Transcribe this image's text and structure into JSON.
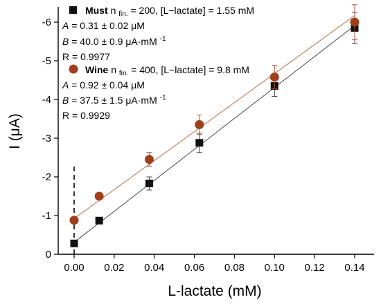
{
  "chart_data": {
    "type": "scatter",
    "xlabel": "L-lactate (mM)",
    "ylabel": "I (μA)",
    "xlim": [
      -0.005,
      0.145
    ],
    "ylim": [
      0,
      -6.5
    ],
    "x_ticks": [
      "0.00",
      "0.02",
      "0.04",
      "0.06",
      "0.08",
      "0.10",
      "0.12",
      "0.14"
    ],
    "y_ticks": [
      "0",
      "-1",
      "-2",
      "-3",
      "-4",
      "-5",
      "-6"
    ],
    "y_tick_values": [
      0,
      -1,
      -2,
      -3,
      -4,
      -5,
      -6
    ],
    "x_tick_values": [
      0,
      0.02,
      0.04,
      0.06,
      0.08,
      0.1,
      0.12,
      0.14
    ],
    "grid": false,
    "reference_line": {
      "x": 0,
      "y_from": 0,
      "y_to": -2.3,
      "style": "dashed"
    },
    "series": [
      {
        "name": "Must",
        "color": "#111111",
        "marker": "square",
        "x": [
          0,
          0.0125,
          0.0375,
          0.0625,
          0.1,
          0.14
        ],
        "y": [
          -0.28,
          -0.87,
          -1.83,
          -2.88,
          -4.35,
          -5.85
        ],
        "err": [
          0.05,
          0.06,
          0.17,
          0.25,
          0.27,
          0.4
        ],
        "fit": {
          "A": 0.31,
          "B": 40.0,
          "x0": 0,
          "x1": 0.14,
          "color": "#555555"
        }
      },
      {
        "name": "Wine",
        "color": "#a0401a",
        "marker": "circle",
        "x": [
          0,
          0.0125,
          0.0375,
          0.0625,
          0.1,
          0.14
        ],
        "y": [
          -0.88,
          -1.5,
          -2.45,
          -3.35,
          -4.58,
          -6.0
        ],
        "err": [
          0.05,
          0.05,
          0.18,
          0.25,
          0.3,
          0.45
        ],
        "fit": {
          "A": 0.92,
          "B": 37.5,
          "x0": 0,
          "x1": 0.14,
          "color": "#c07a55"
        }
      }
    ],
    "legend": {
      "must": {
        "name": "Must",
        "n_prefix": " n",
        "n_sub": "fin.",
        "cond": "= 200, [L−lactate] = 1.55 mM",
        "A": "= 0.31 ± 0.02 μM",
        "B": "= 40.0 ± 0.9 μA·mM",
        "B_sup": "-1",
        "R": "R = 0.9977"
      },
      "wine": {
        "name": "Wine",
        "n_prefix": " n",
        "n_sub": "fin.",
        "cond": "= 400, [L−lactate] = 9.8 mM",
        "A": "= 0.92 ± 0.04 μM",
        "B": "= 37.5 ± 1.5 μA·mM",
        "B_sup": "-1",
        "R": "R = 0.9929"
      },
      "A_label": "A",
      "B_label": "B"
    }
  }
}
